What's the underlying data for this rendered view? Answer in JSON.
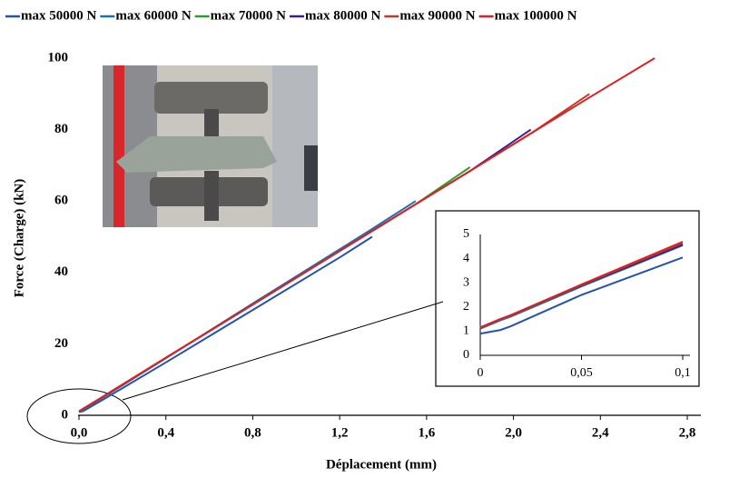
{
  "chart_data": [
    {
      "type": "line",
      "x_label": "Déplacement (mm)",
      "y_label": "Force (Charge) (kN)",
      "x": [
        0,
        0.02,
        0.1,
        0.2,
        0.4,
        0.8,
        1.2,
        1.35,
        1.55,
        1.8,
        2.08,
        2.35,
        2.65
      ],
      "series": [
        {
          "name": "max 50000 N",
          "color": "#2452b0",
          "values": [
            0.9,
            1.2,
            4,
            7.6,
            14.8,
            29.5,
            44.2,
            50,
            null,
            null,
            null,
            null,
            null
          ]
        },
        {
          "name": "max 60000 N",
          "color": "#1f6fb4",
          "values": [
            1.1,
            1.6,
            4.6,
            8.4,
            16,
            31.3,
            46.5,
            52.2,
            60,
            null,
            null,
            null,
            null
          ]
        },
        {
          "name": "max 70000 N",
          "color": "#2ca02c",
          "values": [
            1.1,
            1.85,
            4.8,
            8.6,
            16.1,
            31,
            46,
            51.6,
            59.1,
            69.5,
            null,
            null,
            null
          ]
        },
        {
          "name": "max 80000 N",
          "color": "#3b1f8f",
          "values": [
            1.1,
            1.85,
            4.8,
            8.6,
            16.1,
            31,
            46,
            51.6,
            59.1,
            68.4,
            80,
            null,
            null
          ]
        },
        {
          "name": "max 90000 N",
          "color": "#c0392b",
          "values": [
            1.1,
            1.85,
            4.8,
            8.6,
            16.1,
            31,
            46,
            51.6,
            59.1,
            68.4,
            78.9,
            90,
            null
          ]
        },
        {
          "name": "max 100000 N",
          "color": "#e02020",
          "values": [
            1.1,
            1.85,
            4.8,
            8.6,
            16.1,
            31,
            46,
            51.6,
            59.1,
            68.4,
            78.9,
            89,
            100
          ]
        }
      ],
      "xlim": [
        0,
        2.8
      ],
      "xticks": [
        {
          "value": 0,
          "label": "0,0"
        },
        {
          "value": 0.4,
          "label": "0,4"
        },
        {
          "value": 0.8,
          "label": "0,8"
        },
        {
          "value": 1.2,
          "label": "1,2"
        },
        {
          "value": 1.6,
          "label": "1,6"
        },
        {
          "value": 2.0,
          "label": "2,0"
        },
        {
          "value": 2.4,
          "label": "2,4"
        },
        {
          "value": 2.8,
          "label": "2,8"
        }
      ],
      "ylim": [
        0,
        100
      ],
      "yticks": [
        0,
        20,
        40,
        60,
        80,
        100
      ],
      "grid": false,
      "legend": "top"
    },
    {
      "type": "line",
      "x": [
        0,
        0.01,
        0.015,
        0.05,
        0.1
      ],
      "series": [
        {
          "color": "#2452b0",
          "values": [
            0.9,
            1.05,
            1.2,
            2.5,
            4.05
          ]
        },
        {
          "color": "#1f6fb4",
          "values": [
            1.1,
            1.45,
            1.6,
            2.85,
            4.55
          ]
        },
        {
          "color": "#2ca02c",
          "values": [
            1.15,
            1.5,
            1.65,
            2.9,
            4.6
          ]
        },
        {
          "color": "#3b1f8f",
          "values": [
            1.15,
            1.5,
            1.65,
            2.9,
            4.58
          ]
        },
        {
          "color": "#c0392b",
          "values": [
            1.15,
            1.5,
            1.65,
            2.92,
            4.65
          ]
        },
        {
          "color": "#e02020",
          "values": [
            1.15,
            1.5,
            1.66,
            2.93,
            4.7
          ]
        }
      ],
      "xlim": [
        0,
        0.1
      ],
      "xticks": [
        0,
        {
          "value": 0.05,
          "label": "0,05"
        },
        {
          "value": 0.1,
          "label": "0,1"
        }
      ],
      "ylim": [
        0,
        5
      ],
      "yticks": [
        0,
        1,
        2,
        3,
        4,
        5
      ],
      "grid": false
    }
  ]
}
